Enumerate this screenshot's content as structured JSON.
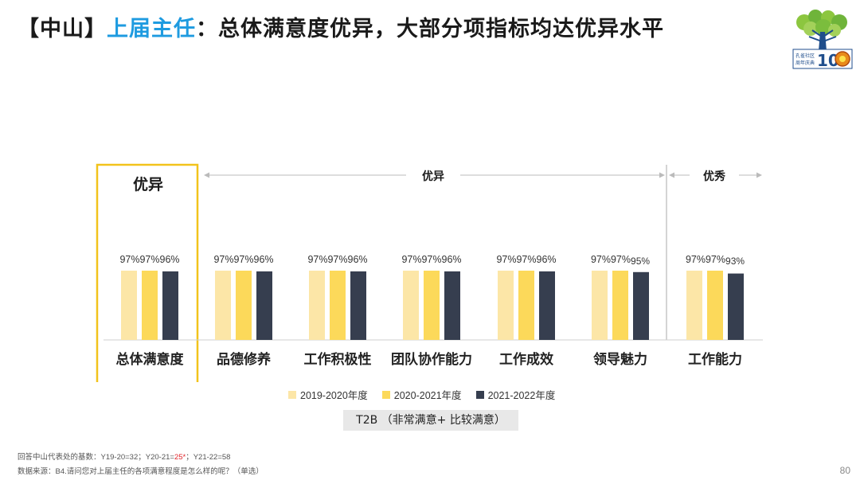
{
  "title": {
    "bracket": "【中山】",
    "role": "上届主任",
    "colon": "：",
    "headline": "总体满意度优异，大部分项指标均达优异水平"
  },
  "logo": {
    "text_lines": [
      "孔雀社区",
      "周年庆典"
    ],
    "number": "10"
  },
  "chart_data": {
    "type": "bar",
    "categories": [
      "总体满意度",
      "品德修养",
      "工作积极性",
      "团队协作能力",
      "工作成效",
      "领导魅力",
      "工作能力"
    ],
    "series": [
      {
        "name": "2019-2020年度",
        "values": [
          97,
          97,
          97,
          97,
          97,
          97,
          97
        ],
        "labels": [
          "97%",
          "97%",
          "97%",
          "97%",
          "97%",
          "97%",
          "97%"
        ],
        "color": "#fce6a7"
      },
      {
        "name": "2020-2021年度",
        "values": [
          97,
          97,
          97,
          97,
          97,
          97,
          97
        ],
        "labels": [
          "97%",
          "97%",
          "97%",
          "97%",
          "97%",
          "97%",
          "97%"
        ],
        "color": "#fcd95a"
      },
      {
        "name": "2021-2022年度",
        "values": [
          96,
          96,
          96,
          96,
          96,
          95,
          93
        ],
        "labels": [
          "96%",
          "96%",
          "96%",
          "96%",
          "96%",
          "95%",
          "93%"
        ],
        "color": "#363e4f"
      }
    ],
    "groups": [
      {
        "label": "优异",
        "categories": [
          "总体满意度"
        ],
        "highlight": true
      },
      {
        "label": "优异",
        "categories": [
          "品德修养",
          "工作积极性",
          "团队协作能力",
          "工作成效",
          "领导魅力"
        ]
      },
      {
        "label": "优秀",
        "categories": [
          "工作能力"
        ]
      }
    ],
    "ylim": [
      0,
      100
    ],
    "grid": false,
    "legend_position": "bottom"
  },
  "t2b_label": "T2B （非常满意+ 比较满意）",
  "footnote": {
    "base_prefix": "回答中山代表处的基数：Y19-20=32；Y20-21=",
    "base_flag": "25*",
    "base_suffix": "；Y21-22=58",
    "source": "数据来源：B4.请问您对上届主任的各项满意程度是怎么样的呢？（单选）"
  },
  "page_number": "80"
}
